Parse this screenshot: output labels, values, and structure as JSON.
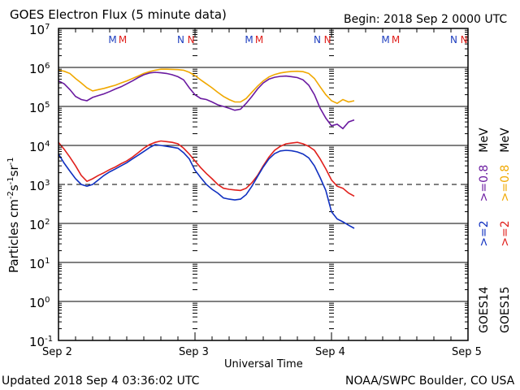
{
  "chart_data": {
    "type": "line",
    "title": "GOES Electron Flux (5 minute data)",
    "begin_label": "Begin: 2018 Sep 2 0000 UTC",
    "xlabel": "Universal Time",
    "ylabel_main": "Particles cm",
    "ylabel_sup1": "-2",
    "ylabel_mid": "s",
    "ylabel_sup2": "-1",
    "ylabel_end": "sr",
    "ylabel_sup3": "-1",
    "yscale": "log",
    "ylim": [
      0.1,
      10000000
    ],
    "xlim_hours": [
      0,
      72
    ],
    "x_tick_labels": [
      {
        "hour": 0,
        "label": "Sep 2"
      },
      {
        "hour": 24,
        "label": "Sep 3"
      },
      {
        "hour": 48,
        "label": "Sep 4"
      },
      {
        "hour": 72,
        "label": "Sep 5"
      }
    ],
    "y_tick_labels": [
      {
        "exp": 7,
        "base": "10",
        "sup": "7"
      },
      {
        "exp": 6,
        "base": "10",
        "sup": "6"
      },
      {
        "exp": 5,
        "base": "10",
        "sup": "5"
      },
      {
        "exp": 4,
        "base": "10",
        "sup": "4"
      },
      {
        "exp": 3,
        "base": "10",
        "sup": "3"
      },
      {
        "exp": 2,
        "base": "10",
        "sup": "2"
      },
      {
        "exp": 1,
        "base": "10",
        "sup": "1"
      },
      {
        "exp": 0,
        "base": "10",
        "sup": "0"
      },
      {
        "exp": -1,
        "base": "10",
        "sup": "-1"
      }
    ],
    "threshold_line": {
      "value": 1000,
      "style": "dashed"
    },
    "grid_lines_at": [
      1000000,
      100000,
      10000,
      100,
      10,
      1
    ],
    "day_markers": [
      {
        "hour": 9.5,
        "label": "M",
        "color": "#1f3fbf"
      },
      {
        "hour": 11.3,
        "label": "M",
        "color": "#e0201c"
      },
      {
        "hour": 21.5,
        "label": "N",
        "color": "#1f3fbf"
      },
      {
        "hour": 23.3,
        "label": "N",
        "color": "#e0201c"
      },
      {
        "hour": 33.5,
        "label": "M",
        "color": "#1f3fbf"
      },
      {
        "hour": 35.3,
        "label": "M",
        "color": "#e0201c"
      },
      {
        "hour": 45.5,
        "label": "N",
        "color": "#1f3fbf"
      },
      {
        "hour": 47.3,
        "label": "N",
        "color": "#e0201c"
      },
      {
        "hour": 57.5,
        "label": "M",
        "color": "#1f3fbf"
      },
      {
        "hour": 59.3,
        "label": "M",
        "color": "#e0201c"
      },
      {
        "hour": 69.5,
        "label": "N",
        "color": "#1f3fbf"
      },
      {
        "hour": 71.3,
        "label": "N",
        "color": "#e0201c"
      }
    ],
    "series": [
      {
        "name": "GOES15 >=0.8 MeV",
        "color": "#f0a800",
        "hours": [
          0,
          1,
          2,
          3,
          4,
          5,
          6,
          7,
          8,
          9,
          10,
          11,
          12,
          13,
          14,
          15,
          16,
          17,
          18,
          19,
          20,
          21,
          22,
          23,
          24,
          25,
          26,
          27,
          28,
          29,
          30,
          31,
          32,
          33,
          34,
          35,
          36,
          37,
          38,
          39,
          40,
          41,
          42,
          43,
          44,
          45,
          46,
          47,
          48,
          49,
          50,
          51,
          52
        ],
        "values": [
          850000,
          800000,
          700000,
          520000,
          400000,
          300000,
          250000,
          270000,
          290000,
          320000,
          350000,
          400000,
          450000,
          520000,
          600000,
          700000,
          780000,
          850000,
          900000,
          900000,
          890000,
          880000,
          850000,
          750000,
          620000,
          480000,
          380000,
          300000,
          230000,
          180000,
          150000,
          130000,
          130000,
          160000,
          230000,
          330000,
          450000,
          570000,
          660000,
          720000,
          760000,
          790000,
          800000,
          780000,
          700000,
          520000,
          320000,
          200000,
          140000,
          120000,
          150000,
          130000,
          140000
        ]
      },
      {
        "name": "GOES15 >=0.8 MeV (GOES14 >=0.8 MeV purple)",
        "color": "#6a1aa0",
        "hours": [
          0,
          1,
          2,
          3,
          4,
          5,
          6,
          7,
          8,
          9,
          10,
          11,
          12,
          13,
          14,
          15,
          16,
          17,
          18,
          19,
          20,
          21,
          22,
          23,
          24,
          25,
          26,
          27,
          28,
          29,
          30,
          31,
          32,
          33,
          34,
          35,
          36,
          37,
          38,
          39,
          40,
          41,
          42,
          43,
          44,
          45,
          46,
          47,
          48,
          49,
          50,
          51,
          52
        ],
        "values": [
          450000,
          380000,
          270000,
          180000,
          150000,
          140000,
          170000,
          190000,
          210000,
          240000,
          280000,
          320000,
          380000,
          450000,
          550000,
          650000,
          720000,
          750000,
          730000,
          700000,
          650000,
          580000,
          480000,
          300000,
          200000,
          160000,
          150000,
          130000,
          110000,
          100000,
          90000,
          80000,
          85000,
          120000,
          180000,
          280000,
          400000,
          500000,
          560000,
          590000,
          600000,
          580000,
          550000,
          480000,
          350000,
          200000,
          90000,
          50000,
          32000,
          35000,
          27000,
          40000,
          45000
        ]
      },
      {
        "name": "GOES15 >=2 MeV",
        "color": "#e0201c",
        "hours": [
          0,
          1,
          2,
          3,
          4,
          5,
          6,
          7,
          8,
          9,
          10,
          11,
          12,
          13,
          14,
          15,
          16,
          17,
          18,
          19,
          20,
          21,
          22,
          23,
          24,
          25,
          26,
          27,
          28,
          29,
          30,
          31,
          32,
          33,
          34,
          35,
          36,
          37,
          38,
          39,
          40,
          41,
          42,
          43,
          44,
          45,
          46,
          47,
          48,
          49,
          50,
          51,
          52
        ],
        "values": [
          12000,
          8000,
          5000,
          3000,
          1700,
          1200,
          1400,
          1700,
          2000,
          2400,
          2800,
          3400,
          4000,
          5000,
          6500,
          8500,
          10500,
          12000,
          13000,
          12500,
          12000,
          11000,
          8500,
          6000,
          4000,
          2700,
          1900,
          1400,
          1000,
          800,
          750,
          720,
          700,
          800,
          1100,
          1700,
          3000,
          5000,
          7500,
          9500,
          11000,
          11500,
          12000,
          11000,
          9500,
          7500,
          4500,
          2500,
          1300,
          900,
          800,
          600,
          500
        ]
      },
      {
        "name": "GOES14 >=2 MeV",
        "color": "#1030c0",
        "hours": [
          0,
          1,
          2,
          3,
          4,
          5,
          6,
          7,
          8,
          9,
          10,
          11,
          12,
          13,
          14,
          15,
          16,
          17,
          18,
          19,
          20,
          21,
          22,
          23,
          24,
          25,
          26,
          27,
          28,
          29,
          30,
          31,
          32,
          33,
          34,
          35,
          36,
          37,
          38,
          39,
          40,
          41,
          42,
          43,
          44,
          45,
          46,
          47,
          48,
          49,
          50,
          51,
          52
        ],
        "values": [
          6000,
          3500,
          2200,
          1400,
          1000,
          900,
          1000,
          1300,
          1700,
          2100,
          2500,
          3000,
          3600,
          4500,
          5600,
          7000,
          8800,
          10500,
          10000,
          9500,
          9000,
          8500,
          6500,
          4500,
          2300,
          1500,
          1000,
          750,
          600,
          450,
          420,
          400,
          420,
          550,
          900,
          1600,
          2800,
          4500,
          6200,
          7200,
          7500,
          7300,
          6800,
          6000,
          4800,
          3000,
          1500,
          700,
          200,
          130,
          110,
          90,
          75
        ]
      }
    ],
    "legend": [
      {
        "label": "GOES14",
        "color": "#000000"
      },
      {
        "label": "GOES15",
        "color": "#000000"
      },
      {
        "label": ">=2",
        "color": "#1030c0"
      },
      {
        "label": ">=2",
        "color": "#e0201c"
      },
      {
        "label": ">=0.8",
        "color": "#6a1aa0"
      },
      {
        "label": ">=0.8",
        "color": "#f0a800"
      },
      {
        "label": "MeV",
        "color": "#000000"
      },
      {
        "label": "MeV",
        "color": "#000000"
      }
    ],
    "legend_placement": "right"
  },
  "footer": {
    "updated": "Updated 2018 Sep  4 03:36:02 UTC",
    "credit": "NOAA/SWPC Boulder, CO USA"
  }
}
